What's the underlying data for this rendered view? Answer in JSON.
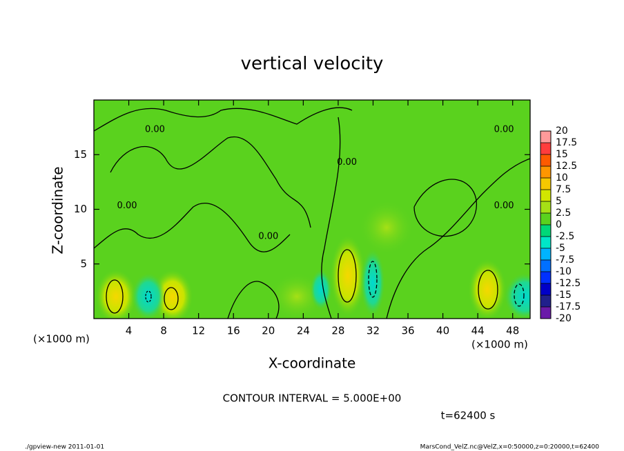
{
  "chart_data": {
    "type": "contour",
    "title": "vertical velocity",
    "xlabel": "X-coordinate",
    "ylabel": "Z-coordinate",
    "x_unit_label": "(×1000 m)",
    "xlim": [
      0,
      50
    ],
    "xticks": [
      4,
      8,
      12,
      16,
      20,
      24,
      28,
      32,
      36,
      40,
      44,
      48
    ],
    "ylim": [
      0,
      20
    ],
    "yticks": [
      5,
      10,
      15
    ],
    "colorbar": {
      "levels": [
        -20,
        -17.5,
        -15,
        -12.5,
        -10,
        -7.5,
        -5,
        -2.5,
        0,
        2.5,
        5,
        7.5,
        10,
        12.5,
        15,
        17.5,
        20
      ],
      "colors": [
        "#6a1aa8",
        "#20208c",
        "#0000c8",
        "#0030ff",
        "#0070ff",
        "#00b4ff",
        "#00e6c8",
        "#00d878",
        "#5ad21e",
        "#a6e016",
        "#d2e600",
        "#f5c800",
        "#ff9600",
        "#ff5a00",
        "#ff3c3c",
        "#ff9a9a"
      ]
    },
    "contour_labels": [
      {
        "text": "0.00",
        "x": 7,
        "y": 17.3
      },
      {
        "text": "0.00",
        "x": 47,
        "y": 17.3
      },
      {
        "text": "0.00",
        "x": 47,
        "y": 10.3
      },
      {
        "text": "0.00",
        "x": 3.8,
        "y": 10.3
      },
      {
        "text": "0.00",
        "x": 29,
        "y": 14.3
      },
      {
        "text": "0.00",
        "x": 20,
        "y": 7.5
      }
    ],
    "contour_interval": "CONTOUR INTERVAL = 5.000E+00",
    "time_label": "t=62400 s",
    "footer_left": "./gpview-new   2011-01-01",
    "footer_right": "MarsCond_VelZ.nc@VelZ,x=0:50000,z=0:20000,t=62400"
  }
}
